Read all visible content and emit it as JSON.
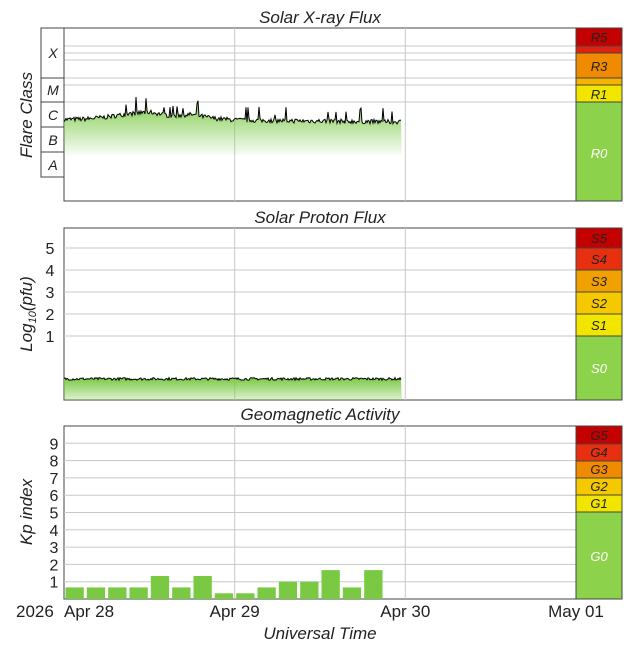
{
  "chart_data": [
    {
      "type": "area",
      "title": "Solar X-ray Flux",
      "ylabel": "Flare Class",
      "y_scale": "log",
      "class_labels": [
        "X",
        "M",
        "C",
        "B",
        "A"
      ],
      "scale_labels": [
        "R5",
        "R3",
        "R1",
        "R0"
      ],
      "colors": {
        "line": "#000000",
        "fill": "#7ac943",
        "r0": "#8cd24a",
        "r1": "#f2e600",
        "r2": "#f5b400",
        "r3": "#f08a00",
        "r4": "#e02010",
        "r5": "#c40000"
      },
      "x_range": [
        "2026-04-28",
        "2026-05-01"
      ],
      "data_end": "2026-04-29T23:30",
      "series_description": "C-class background with M-class peaks",
      "values": [
        [
          "2026-04-28T00:00",
          0.3
        ],
        [
          "2026-04-28T03:00",
          0.32
        ],
        [
          "2026-04-28T06:00",
          0.4
        ],
        [
          "2026-04-28T09:00",
          0.52
        ],
        [
          "2026-04-28T12:00",
          0.6
        ],
        [
          "2026-04-28T15:00",
          0.45
        ],
        [
          "2026-04-28T18:00",
          0.5
        ],
        [
          "2026-04-28T21:00",
          0.35
        ],
        [
          "2026-04-29T00:00",
          0.28
        ],
        [
          "2026-04-29T06:00",
          0.25
        ],
        [
          "2026-04-29T12:00",
          0.24
        ],
        [
          "2026-04-29T18:00",
          0.22
        ],
        [
          "2026-04-29T23:30",
          0.2
        ]
      ]
    },
    {
      "type": "area",
      "title": "Solar Proton Flux",
      "ylabel": "Log10(pfu)",
      "ylabel_parts": {
        "main": "Log",
        "sub": "10",
        "unit": "(pfu)"
      },
      "ylim": [
        -1.5,
        6
      ],
      "yticks": [
        "5",
        "4",
        "3",
        "2",
        "1"
      ],
      "scale_labels": [
        "S5",
        "S4",
        "S3",
        "S2",
        "S1",
        "S0"
      ],
      "colors": {
        "line": "#000000",
        "fill": "#7ac943",
        "s0": "#8cd24a",
        "s1": "#f2e600",
        "s2": "#f5c800",
        "s3": "#f0a000",
        "s4": "#e83010",
        "s5": "#c40000"
      },
      "data_end": "2026-04-29T23:30",
      "values": [
        [
          "2026-04-28T00:00",
          -0.95
        ],
        [
          "2026-04-28T12:00",
          -0.95
        ],
        [
          "2026-04-29T00:00",
          -0.95
        ],
        [
          "2026-04-29T12:00",
          -0.95
        ],
        [
          "2026-04-29T23:30",
          -0.95
        ]
      ]
    },
    {
      "type": "bar",
      "title": "Geomagnetic Activity",
      "ylabel": "Kp index",
      "ylim": [
        0,
        10
      ],
      "yticks": [
        "1",
        "2",
        "3",
        "4",
        "5",
        "6",
        "7",
        "8",
        "9"
      ],
      "scale_labels": [
        "G5",
        "G4",
        "G3",
        "G2",
        "G1",
        "G0"
      ],
      "colors": {
        "bar": "#7ac943",
        "g0": "#8cd24a",
        "g1": "#f2e600",
        "g2": "#f5c800",
        "g3": "#f08a00",
        "g4": "#e83010",
        "g5": "#c40000"
      },
      "x": [
        "2026-04-28T00:00",
        "2026-04-28T03:00",
        "2026-04-28T06:00",
        "2026-04-28T09:00",
        "2026-04-28T12:00",
        "2026-04-28T15:00",
        "2026-04-28T18:00",
        "2026-04-28T21:00",
        "2026-04-29T00:00",
        "2026-04-29T03:00",
        "2026-04-29T06:00",
        "2026-04-29T09:00",
        "2026-04-29T12:00",
        "2026-04-29T15:00",
        "2026-04-29T18:00",
        "2026-04-29T21:00"
      ],
      "values": [
        0.67,
        0.67,
        0.67,
        0.67,
        1.33,
        0.67,
        1.33,
        0.33,
        0.33,
        0.67,
        1.0,
        1.0,
        1.67,
        0.67,
        1.67,
        null
      ]
    }
  ],
  "x_axis": {
    "label": "Universal Time",
    "year": "2026",
    "ticks": [
      "Apr 28",
      "Apr 29",
      "Apr 30",
      "May 01"
    ]
  }
}
